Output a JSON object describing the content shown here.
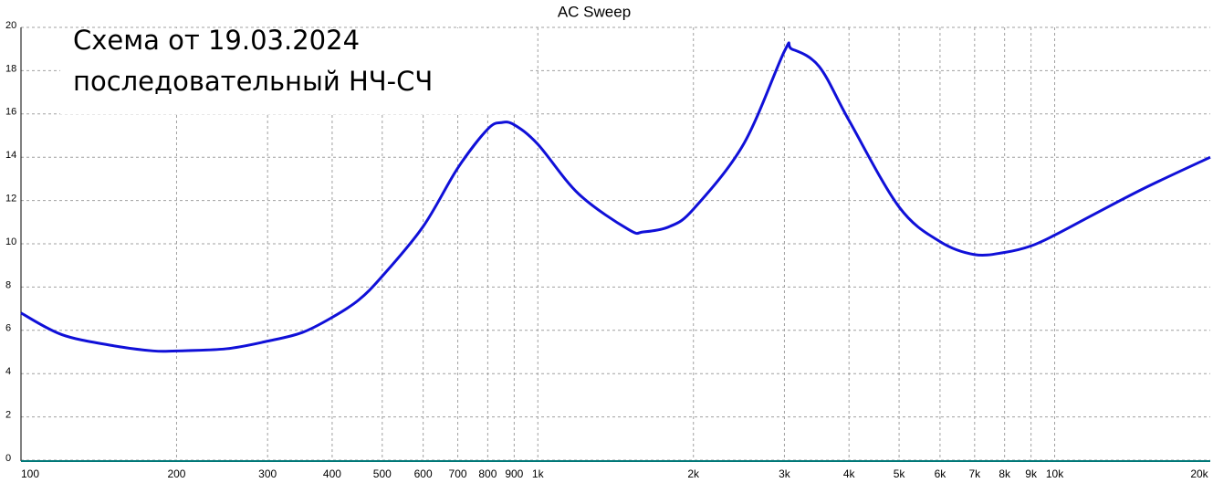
{
  "chart_data": {
    "type": "line",
    "title": "AC Sweep",
    "annotations": [
      "Схема от 19.03.2024",
      "последовательный НЧ-СЧ"
    ],
    "x": [
      100,
      120,
      150,
      180,
      200,
      250,
      300,
      350,
      400,
      450,
      500,
      600,
      700,
      800,
      850,
      900,
      1000,
      1200,
      1500,
      1600,
      1800,
      2000,
      2500,
      3000,
      3100,
      3500,
      4000,
      5000,
      6000,
      7000,
      8000,
      9000,
      10000,
      12000,
      15000,
      20000
    ],
    "series": [
      {
        "color": "#1010d8",
        "values": [
          6.8,
          5.8,
          5.3,
          5.05,
          5.05,
          5.15,
          5.5,
          5.9,
          6.6,
          7.4,
          8.5,
          10.8,
          13.5,
          15.3,
          15.6,
          15.5,
          14.6,
          12.3,
          10.65,
          10.55,
          10.8,
          11.6,
          14.6,
          18.9,
          19.0,
          18.2,
          15.7,
          11.7,
          10.1,
          9.5,
          9.6,
          9.9,
          10.4,
          11.4,
          12.6,
          14.0
        ]
      }
    ],
    "xlim": [
      100,
      20000
    ],
    "xscale": "log",
    "xticks": [
      100,
      200,
      300,
      400,
      500,
      600,
      700,
      800,
      900,
      {
        "value": 1000,
        "label": "1k"
      },
      {
        "value": 2000,
        "label": "2k"
      },
      {
        "value": 3000,
        "label": "3k"
      },
      {
        "value": 4000,
        "label": "4k"
      },
      {
        "value": 5000,
        "label": "5k"
      },
      {
        "value": 6000,
        "label": "6k"
      },
      {
        "value": 7000,
        "label": "7k"
      },
      {
        "value": 8000,
        "label": "8k"
      },
      {
        "value": 9000,
        "label": "9k"
      },
      {
        "value": 10000,
        "label": "10k"
      },
      {
        "value": 20000,
        "label": "20k"
      }
    ],
    "ylim": [
      0,
      20
    ],
    "yticks": [
      0,
      2,
      4,
      6,
      8,
      10,
      12,
      14,
      16,
      18,
      20
    ],
    "grid": true
  }
}
